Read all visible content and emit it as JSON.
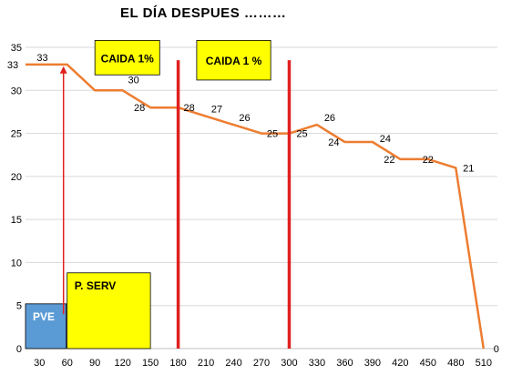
{
  "title": "EL DÍA DESPUES ………",
  "chart_data": {
    "type": "line",
    "x": [
      30,
      60,
      90,
      120,
      150,
      180,
      210,
      240,
      270,
      300,
      330,
      360,
      390,
      420,
      450,
      480,
      510
    ],
    "xticks": [
      "30",
      "60",
      "90",
      "120",
      "150",
      "180",
      "210",
      "240",
      "270",
      "300",
      "330",
      "360",
      "390",
      "420",
      "450",
      "480",
      "510"
    ],
    "yticks": [
      "0",
      "5",
      "10",
      "15",
      "20",
      "25",
      "30",
      "35"
    ],
    "ylim": [
      0,
      35
    ],
    "xlim": [
      15,
      525
    ],
    "grid": true,
    "series_color": "#ED7D31",
    "series": [
      {
        "points": [
          [
            15,
            33
          ],
          [
            45,
            33
          ],
          [
            60,
            33
          ],
          [
            90,
            30
          ],
          [
            120,
            30
          ],
          [
            150,
            28
          ],
          [
            180,
            28
          ],
          [
            210,
            27
          ],
          [
            240,
            26
          ],
          [
            270,
            25
          ],
          [
            300,
            25
          ],
          [
            330,
            26
          ],
          [
            360,
            24
          ],
          [
            390,
            24
          ],
          [
            420,
            22
          ],
          [
            450,
            22
          ],
          [
            480,
            21
          ],
          [
            510,
            0
          ]
        ],
        "labels": [
          {
            "text": "33",
            "x": 15,
            "y": 33
          },
          {
            "text": "33",
            "x": 45,
            "y": 33
          },
          {
            "text": "30",
            "x": 120,
            "y": 30
          },
          {
            "text": "28",
            "x": 150,
            "y": 28
          },
          {
            "text": "28",
            "x": 180,
            "y": 28
          },
          {
            "text": "27",
            "x": 210,
            "y": 27
          },
          {
            "text": "26",
            "x": 240,
            "y": 26
          },
          {
            "text": "25",
            "x": 270,
            "y": 25
          },
          {
            "text": "25",
            "x": 300,
            "y": 25
          },
          {
            "text": "26",
            "x": 330,
            "y": 26
          },
          {
            "text": "24",
            "x": 360,
            "y": 24
          },
          {
            "text": "24",
            "x": 390,
            "y": 24
          },
          {
            "text": "22",
            "x": 420,
            "y": 22
          },
          {
            "text": "22",
            "x": 450,
            "y": 22
          },
          {
            "text": "21",
            "x": 480,
            "y": 21
          },
          {
            "text": "0",
            "x": 510,
            "y": 0
          }
        ]
      }
    ],
    "annotations": {
      "vertical_lines": [
        {
          "x": 180,
          "y_top": 33.5,
          "color": "#E02020"
        },
        {
          "x": 300,
          "y_top": 33.5,
          "color": "#E02020"
        }
      ],
      "boxes": [
        {
          "label": "CAIDA 1%",
          "x0": 90,
          "x1": 160,
          "y0": 31.8,
          "y1": 35.8,
          "color": "#FFFF00"
        },
        {
          "label": "CAIDA 1 %",
          "x0": 200,
          "x1": 280,
          "y0": 31.2,
          "y1": 35.8,
          "color": "#FFFF00"
        },
        {
          "label": "PVE",
          "x0": 15,
          "x1": 59,
          "y0": 0,
          "y1": 5.2,
          "color": "#5B9BD5"
        },
        {
          "label": "P. SERV",
          "x0": 60,
          "x1": 150,
          "y0": 0,
          "y1": 8.8,
          "color": "#FFFF00"
        }
      ],
      "arrow": {
        "x": 60,
        "y_start": 4.0,
        "y_end": 32.8,
        "color": "#E02020"
      }
    }
  }
}
